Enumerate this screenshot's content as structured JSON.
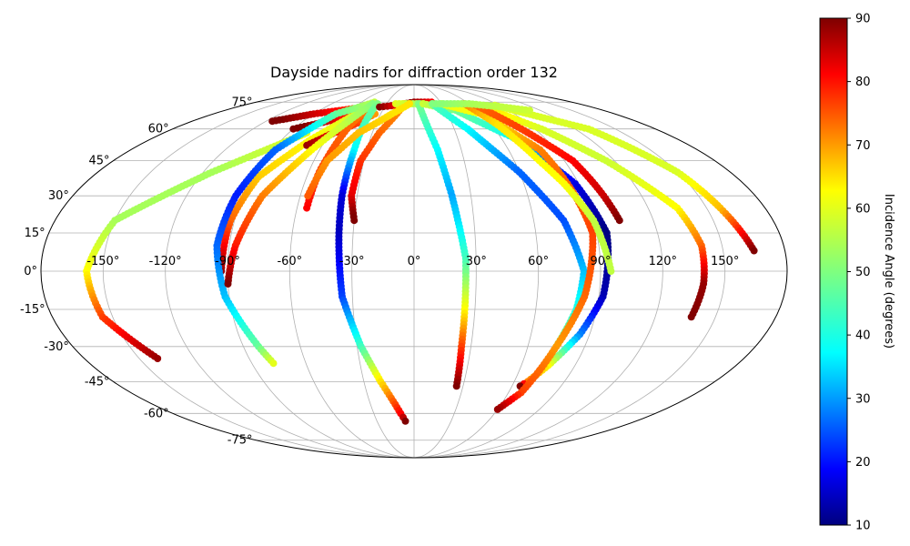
{
  "chart_data": {
    "type": "scatter",
    "projection": "mollweide",
    "title": "Dayside nadirs for diffraction order 132",
    "grid": true,
    "lon_ticks": [
      "-150°",
      "-120°",
      "-90°",
      "-60°",
      "-30°",
      "0°",
      "30°",
      "60°",
      "90°",
      "120°",
      "150°"
    ],
    "lat_ticks": [
      "75°",
      "60°",
      "45°",
      "30°",
      "15°",
      "0°",
      "-15°",
      "-30°",
      "-45°",
      "-60°",
      "-75°"
    ],
    "colorbar": {
      "label": "Incidence Angle (degrees)",
      "colormap": "jet",
      "range": [
        10,
        90
      ],
      "ticks": [
        "10",
        "20",
        "30",
        "40",
        "50",
        "60",
        "70",
        "80",
        "90"
      ]
    },
    "tracks": [
      {
        "points": [
          [
            -77,
            58,
            58
          ],
          [
            -115,
            40,
            53
          ],
          [
            -150,
            20,
            53
          ],
          [
            -158,
            0,
            60
          ],
          [
            -155,
            -18,
            75
          ],
          [
            -140,
            -35,
            88
          ]
        ]
      },
      {
        "points": [
          [
            -115,
            64,
            92
          ],
          [
            -90,
            68,
            84
          ],
          [
            -60,
            71,
            76
          ],
          [
            -45,
            72,
            72
          ]
        ]
      },
      {
        "points": [
          [
            -90,
            60,
            93
          ],
          [
            -75,
            63,
            86
          ],
          [
            -60,
            66,
            80
          ],
          [
            -45,
            70,
            75
          ]
        ]
      },
      {
        "points": [
          [
            -45,
            73,
            55
          ],
          [
            -70,
            55,
            60
          ],
          [
            -87,
            38,
            64
          ],
          [
            -92,
            20,
            72
          ],
          [
            -93,
            0,
            88
          ]
        ]
      },
      {
        "points": [
          [
            -70,
            52,
            88
          ],
          [
            -60,
            57,
            82
          ],
          [
            -45,
            63,
            75
          ],
          [
            -35,
            68,
            68
          ]
        ]
      },
      {
        "points": [
          [
            -45,
            74,
            70
          ],
          [
            -50,
            60,
            72
          ],
          [
            -54,
            40,
            75
          ],
          [
            -55,
            25,
            80
          ]
        ]
      },
      {
        "points": [
          [
            -45,
            75,
            55
          ],
          [
            -70,
            68,
            48
          ],
          [
            -88,
            50,
            28
          ],
          [
            -94,
            30,
            22
          ],
          [
            -96,
            10,
            28
          ],
          [
            -92,
            -10,
            35
          ],
          [
            -82,
            -30,
            48
          ],
          [
            -78,
            -37,
            58
          ]
        ]
      },
      {
        "points": [
          [
            -45,
            74,
            50
          ],
          [
            -65,
            50,
            60
          ],
          [
            -80,
            30,
            70
          ],
          [
            -87,
            10,
            78
          ],
          [
            -90,
            -5,
            90
          ]
        ]
      },
      {
        "points": [
          [
            -40,
            74,
            50
          ],
          [
            -38,
            50,
            40
          ],
          [
            -38,
            30,
            17
          ],
          [
            -37,
            15,
            15
          ],
          [
            -35,
            -10,
            25
          ],
          [
            -28,
            -30,
            45
          ],
          [
            -20,
            -45,
            62
          ],
          [
            -10,
            -60,
            80
          ],
          [
            -7,
            -64,
            90
          ]
        ]
      },
      {
        "points": [
          [
            -20,
            73,
            95
          ],
          [
            0,
            75,
            88
          ],
          [
            20,
            75,
            80
          ]
        ]
      },
      {
        "points": [
          [
            -35,
            72,
            90
          ],
          [
            -20,
            73,
            82
          ],
          [
            -5,
            74,
            75
          ]
        ]
      },
      {
        "points": [
          [
            -10,
            74,
            68
          ],
          [
            -25,
            58,
            72
          ],
          [
            -32,
            45,
            76
          ],
          [
            -33,
            30,
            82
          ],
          [
            -30,
            20,
            92
          ]
        ]
      },
      {
        "points": [
          [
            -20,
            74,
            58
          ],
          [
            -5,
            74,
            55
          ],
          [
            10,
            74,
            52
          ]
        ]
      },
      {
        "points": [
          [
            -5,
            74,
            62
          ],
          [
            -20,
            68,
            62
          ],
          [
            -40,
            58,
            65
          ],
          [
            -52,
            45,
            68
          ],
          [
            -56,
            30,
            73
          ]
        ]
      },
      {
        "points": [
          [
            5,
            74,
            50
          ],
          [
            15,
            50,
            40
          ],
          [
            20,
            30,
            33
          ],
          [
            25,
            5,
            45
          ],
          [
            25,
            -15,
            60
          ],
          [
            25,
            -30,
            75
          ],
          [
            26,
            -47,
            90
          ]
        ]
      },
      {
        "points": [
          [
            10,
            74,
            56
          ],
          [
            40,
            70,
            49
          ],
          [
            70,
            55,
            40
          ],
          [
            88,
            35,
            18
          ],
          [
            95,
            15,
            10
          ],
          [
            92,
            -10,
            14
          ],
          [
            85,
            -25,
            30
          ],
          [
            75,
            -38,
            60
          ],
          [
            68,
            -45,
            70
          ],
          [
            65,
            -47,
            90
          ]
        ]
      },
      {
        "points": [
          [
            20,
            74,
            47
          ],
          [
            40,
            60,
            40
          ],
          [
            60,
            40,
            28
          ],
          [
            75,
            20,
            26
          ],
          [
            82,
            0,
            35
          ],
          [
            80,
            -15,
            42
          ],
          [
            75,
            -30,
            52
          ]
        ]
      },
      {
        "points": [
          [
            30,
            74,
            58
          ],
          [
            60,
            68,
            60
          ],
          [
            80,
            50,
            70
          ],
          [
            85,
            30,
            73
          ],
          [
            88,
            15,
            75
          ],
          [
            83,
            -10,
            72
          ],
          [
            75,
            -30,
            68
          ],
          [
            68,
            -50,
            75
          ],
          [
            60,
            -58,
            88
          ]
        ]
      },
      {
        "points": [
          [
            55,
            74,
            70
          ],
          [
            65,
            62,
            62
          ],
          [
            75,
            45,
            60
          ],
          [
            82,
            35,
            60
          ],
          [
            90,
            20,
            55
          ],
          [
            95,
            0,
            55
          ]
        ]
      },
      {
        "points": [
          [
            70,
            72,
            63
          ],
          [
            95,
            60,
            57
          ],
          [
            115,
            45,
            56
          ],
          [
            135,
            25,
            60
          ],
          [
            140,
            10,
            72
          ],
          [
            140,
            -5,
            88
          ],
          [
            138,
            -18,
            90
          ]
        ]
      },
      {
        "points": [
          [
            65,
            73,
            72
          ],
          [
            80,
            60,
            75
          ],
          [
            95,
            45,
            80
          ],
          [
            100,
            30,
            84
          ],
          [
            103,
            20,
            90
          ]
        ]
      },
      {
        "points": [
          [
            85,
            73,
            57
          ],
          [
            130,
            60,
            57
          ],
          [
            150,
            40,
            57
          ],
          [
            157,
            25,
            65
          ],
          [
            165,
            8,
            90
          ]
        ]
      },
      {
        "points": [
          [
            20,
            74,
            50
          ],
          [
            60,
            74,
            53
          ],
          [
            90,
            72,
            55
          ],
          [
            110,
            70,
            56
          ]
        ]
      }
    ]
  }
}
